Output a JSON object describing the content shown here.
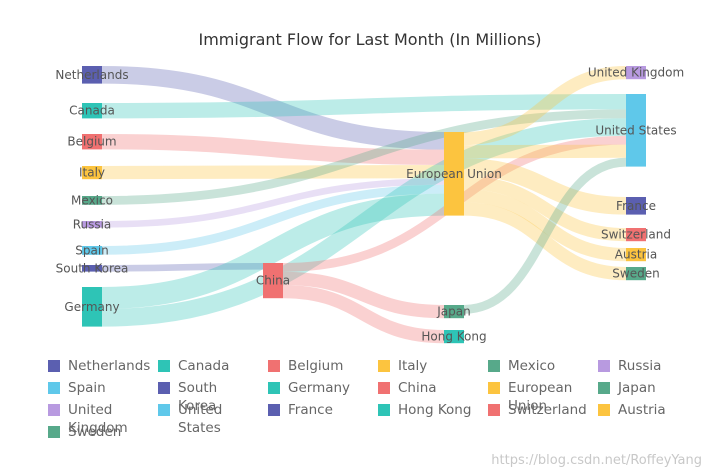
{
  "colors": {
    "Netherlands": "#5b5fb0",
    "Canada": "#2ec4b6",
    "Belgium": "#f07171",
    "Italy": "#fcc43f",
    "Mexico": "#57a98a",
    "Russia": "#b89ae0",
    "Spain": "#5fc8ea",
    "South Korea": "#5b5fb0",
    "Germany": "#2ec4b6",
    "China": "#f07171",
    "European Union": "#fcc43f",
    "Japan": "#57a98a",
    "Hong Kong": "#2ec4b6",
    "United Kingdom": "#b89ae0",
    "United States": "#5fc8ea",
    "France": "#5b5fb0",
    "Switzerland": "#f07171",
    "Austria": "#fcc43f",
    "Sweden": "#57a98a"
  },
  "chart_data": {
    "type": "sankey",
    "title": "Immigrant Flow for Last Month (In Millions)",
    "nodes": [
      "Netherlands",
      "Canada",
      "Belgium",
      "Italy",
      "Mexico",
      "Russia",
      "Spain",
      "South Korea",
      "Germany",
      "China",
      "European Union",
      "Japan",
      "Hong Kong",
      "United Kingdom",
      "United States",
      "France",
      "Switzerland",
      "Austria",
      "Sweden"
    ],
    "links": [
      {
        "source": "Netherlands",
        "target": "European Union",
        "value": 8
      },
      {
        "source": "Canada",
        "target": "United States",
        "value": 7
      },
      {
        "source": "Belgium",
        "target": "European Union",
        "value": 7
      },
      {
        "source": "Italy",
        "target": "European Union",
        "value": 6
      },
      {
        "source": "Mexico",
        "target": "United States",
        "value": 4
      },
      {
        "source": "Russia",
        "target": "European Union",
        "value": 3
      },
      {
        "source": "Spain",
        "target": "European Union",
        "value": 4
      },
      {
        "source": "South Korea",
        "target": "China",
        "value": 3
      },
      {
        "source": "Germany",
        "target": "European Union",
        "value": 10
      },
      {
        "source": "Germany",
        "target": "United States",
        "value": 8
      },
      {
        "source": "China",
        "target": "United States",
        "value": 4
      },
      {
        "source": "China",
        "target": "Japan",
        "value": 6
      },
      {
        "source": "China",
        "target": "Hong Kong",
        "value": 6
      },
      {
        "source": "European Union",
        "target": "United Kingdom",
        "value": 6
      },
      {
        "source": "European Union",
        "target": "United States",
        "value": 6
      },
      {
        "source": "European Union",
        "target": "France",
        "value": 8
      },
      {
        "source": "European Union",
        "target": "Switzerland",
        "value": 6
      },
      {
        "source": "European Union",
        "target": "Austria",
        "value": 6
      },
      {
        "source": "European Union",
        "target": "Sweden",
        "value": 6
      },
      {
        "source": "Japan",
        "target": "United States",
        "value": 4
      }
    ],
    "legend": [
      "Netherlands",
      "Canada",
      "Belgium",
      "Italy",
      "Mexico",
      "Russia",
      "Spain",
      "South Korea",
      "Germany",
      "China",
      "European Union",
      "Japan",
      "United Kingdom",
      "United States",
      "France",
      "Hong Kong",
      "Switzerland",
      "Austria",
      "Sweden"
    ],
    "legend_position": "bottom"
  },
  "watermark": "https://blog.csdn.net/RoffeyYang"
}
